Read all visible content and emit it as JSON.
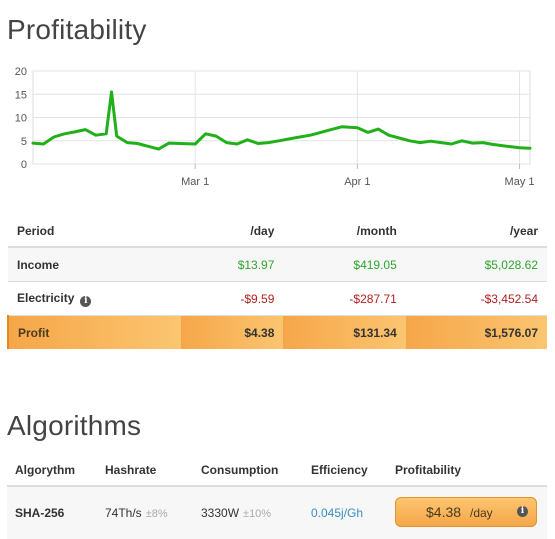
{
  "profitability": {
    "title": "Profitability"
  },
  "chart_data": {
    "type": "line",
    "y_ticks": [
      "20",
      "15",
      "10",
      "5",
      "0"
    ],
    "ylim": [
      0,
      20
    ],
    "x_tick_labels": [
      "Mar 1",
      "Apr 1",
      "May 1"
    ],
    "grid": true,
    "line_color": "#22b01a",
    "x": [
      "Feb 1",
      "Feb 3",
      "Feb 5",
      "Feb 7",
      "Feb 9",
      "Feb 11",
      "Feb 13",
      "Feb 15",
      "Feb 16",
      "Feb 17",
      "Feb 19",
      "Feb 21",
      "Feb 23",
      "Feb 25",
      "Feb 27",
      "Mar 1",
      "Mar 3",
      "Mar 5",
      "Mar 7",
      "Mar 9",
      "Mar 11",
      "Mar 13",
      "Mar 15",
      "Mar 17",
      "Mar 19",
      "Mar 21",
      "Mar 23",
      "Mar 25",
      "Mar 27",
      "Mar 29",
      "Apr 1",
      "Apr 3",
      "Apr 5",
      "Apr 7",
      "Apr 9",
      "Apr 11",
      "Apr 13",
      "Apr 15",
      "Apr 17",
      "Apr 19",
      "Apr 21",
      "Apr 23",
      "Apr 25",
      "Apr 27",
      "Apr 29",
      "May 1",
      "May 3"
    ],
    "series": [
      {
        "values": [
          4.5,
          4.3,
          5.8,
          6.5,
          6.9,
          7.4,
          6.2,
          6.5,
          15.5,
          6.0,
          4.6,
          4.4,
          3.8,
          3.2,
          4.5,
          4.3,
          6.5,
          6.0,
          4.6,
          4.3,
          5.2,
          4.4,
          4.6,
          5.0,
          5.4,
          5.8,
          6.2,
          6.8,
          7.4,
          8.0,
          7.8,
          6.8,
          7.5,
          6.2,
          5.6,
          5.0,
          4.6,
          4.9,
          4.6,
          4.3,
          5.0,
          4.5,
          4.6,
          4.2,
          3.9,
          3.5,
          3.4
        ]
      }
    ]
  },
  "profit_table": {
    "headers": [
      "Period",
      "/day",
      "/month",
      "/year"
    ],
    "rows": [
      {
        "label": "Income",
        "values": [
          "$13.97",
          "$419.05",
          "$5,028.62"
        ]
      },
      {
        "label": "Electricity",
        "values": [
          "-$9.59",
          "-$287.71",
          "-$3,452.54"
        ]
      },
      {
        "label": "Profit",
        "values": [
          "$4.38",
          "$131.34",
          "$1,576.07"
        ]
      }
    ],
    "info_icon": "info-icon",
    "colors": {
      "income": "#2ea62e",
      "electricity": "#b02020",
      "profit_row": "#f6a649"
    }
  },
  "algorithms": {
    "title": "Algorithms",
    "headers": [
      "Algorythm",
      "Hashrate",
      "Consumption",
      "Efficiency",
      "Profitability"
    ],
    "row": {
      "name": "SHA-256",
      "hashrate": "74Th/s",
      "hashrate_var": "±8%",
      "consumption": "3330W",
      "consumption_var": "±10%",
      "efficiency": "0.045j/Gh",
      "profit_amount": "$4.38",
      "profit_unit": "/day"
    }
  }
}
